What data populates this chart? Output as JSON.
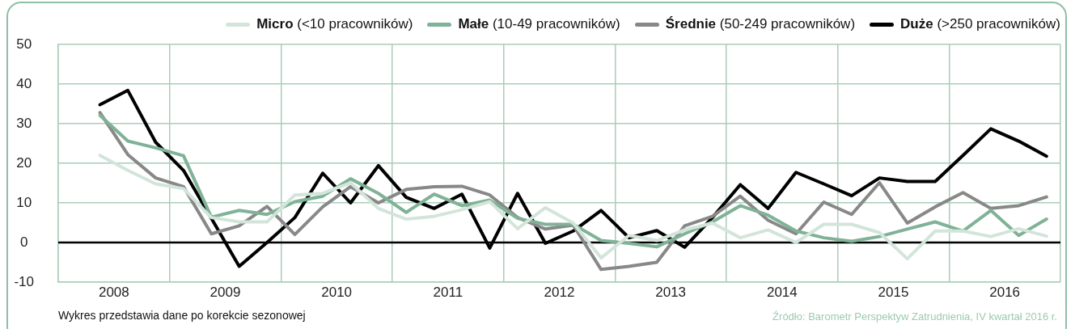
{
  "chart_data": {
    "type": "line",
    "x": [
      2008.375,
      2008.625,
      2008.875,
      2009.125,
      2009.375,
      2009.625,
      2009.875,
      2010.125,
      2010.375,
      2010.625,
      2010.875,
      2011.125,
      2011.375,
      2011.625,
      2011.875,
      2012.125,
      2012.375,
      2012.625,
      2012.875,
      2013.125,
      2013.375,
      2013.625,
      2013.875,
      2014.125,
      2014.375,
      2014.625,
      2014.875,
      2015.125,
      2015.375,
      2015.625,
      2015.875,
      2016.125,
      2016.375,
      2016.625,
      2016.875
    ],
    "series": [
      {
        "name": "Micro (<10 pracowników)",
        "color": "#d3e5da",
        "values": [
          22,
          18.2,
          14.8,
          13.6,
          6.3,
          5.2,
          5.2,
          12,
          12.4,
          15.1,
          8.6,
          5.9,
          6.6,
          8.3,
          10.3,
          3.5,
          8.8,
          4.9,
          -3.9,
          1.8,
          0.5,
          3.2,
          4.9,
          1.2,
          3.2,
          0,
          4.6,
          4.6,
          2.5,
          -4.1,
          2.9,
          2.9,
          1.5,
          3.5,
          1.6
        ]
      },
      {
        "name": "Małe (10-49 pracowników)",
        "color": "#7fb296",
        "values": [
          32.1,
          25.6,
          23.9,
          21.9,
          6.4,
          8.1,
          7.1,
          10.3,
          11.7,
          16.1,
          12.4,
          7.6,
          12.2,
          9.3,
          10.7,
          6.1,
          4.6,
          4.6,
          0.5,
          -0.2,
          -1.1,
          2.2,
          5.2,
          9.3,
          6.9,
          2.9,
          1.2,
          0.3,
          1.5,
          3.4,
          5.2,
          2.9,
          8.1,
          1.8,
          5.9
        ]
      },
      {
        "name": "Średnie (50-249 pracowników)",
        "color": "#888888",
        "values": [
          32.8,
          22.2,
          16.3,
          14.1,
          2.2,
          4.2,
          9.1,
          2,
          9,
          14.1,
          10,
          13.4,
          14.1,
          14.2,
          12,
          6.3,
          3.4,
          4.4,
          -6.8,
          -6,
          -5,
          4.2,
          6.6,
          11.7,
          5.6,
          2.2,
          10.2,
          7.1,
          15.1,
          4.9,
          9,
          12.6,
          8.6,
          9.3,
          11.5
        ]
      },
      {
        "name": "Duże (>250 pracowników)",
        "color": "#000000",
        "values": [
          34.8,
          38.4,
          25.3,
          18.2,
          6.1,
          -6,
          0,
          6.3,
          17.5,
          10,
          19.4,
          11.4,
          8.6,
          12.2,
          -1.4,
          12.4,
          -0.2,
          2.9,
          8.1,
          1.2,
          3,
          -1.2,
          6.3,
          14.6,
          8.6,
          17.7,
          14.8,
          11.8,
          16.3,
          15.4,
          15.4,
          22,
          28.7,
          25.6,
          21.8
        ]
      }
    ],
    "xlim": [
      2008,
      2017
    ],
    "xticks": [
      {
        "value": 2008,
        "label": null
      },
      {
        "value": 2008.5,
        "label": "2008"
      },
      {
        "value": 2009,
        "label": null
      },
      {
        "value": 2009.5,
        "label": "2009"
      },
      {
        "value": 2010,
        "label": null
      },
      {
        "value": 2010.5,
        "label": "2010"
      },
      {
        "value": 2011,
        "label": null
      },
      {
        "value": 2011.5,
        "label": "2011"
      },
      {
        "value": 2012,
        "label": null
      },
      {
        "value": 2012.5,
        "label": "2012"
      },
      {
        "value": 2013,
        "label": null
      },
      {
        "value": 2013.5,
        "label": "2013"
      },
      {
        "value": 2014,
        "label": null
      },
      {
        "value": 2014.5,
        "label": "2014"
      },
      {
        "value": 2015,
        "label": null
      },
      {
        "value": 2015.5,
        "label": "2015"
      },
      {
        "value": 2016,
        "label": null
      },
      {
        "value": 2016.5,
        "label": "2016"
      },
      {
        "value": 2017,
        "label": null
      }
    ],
    "ylim": [
      -10,
      50
    ],
    "yticks": [
      -10,
      0,
      10,
      20,
      30,
      40,
      50
    ],
    "grid": true,
    "legend": "top",
    "marker": "none",
    "line_style": "solid",
    "ref_lines": [
      {
        "axis": "y",
        "value": 0,
        "color": "#000000"
      }
    ],
    "annotations": [
      "Wykres przedstawia dane po korekcie sezonowej",
      "Źródło: Barometr Perspektyw Zatrudnienia, IV kwartał 2016 r."
    ]
  }
}
